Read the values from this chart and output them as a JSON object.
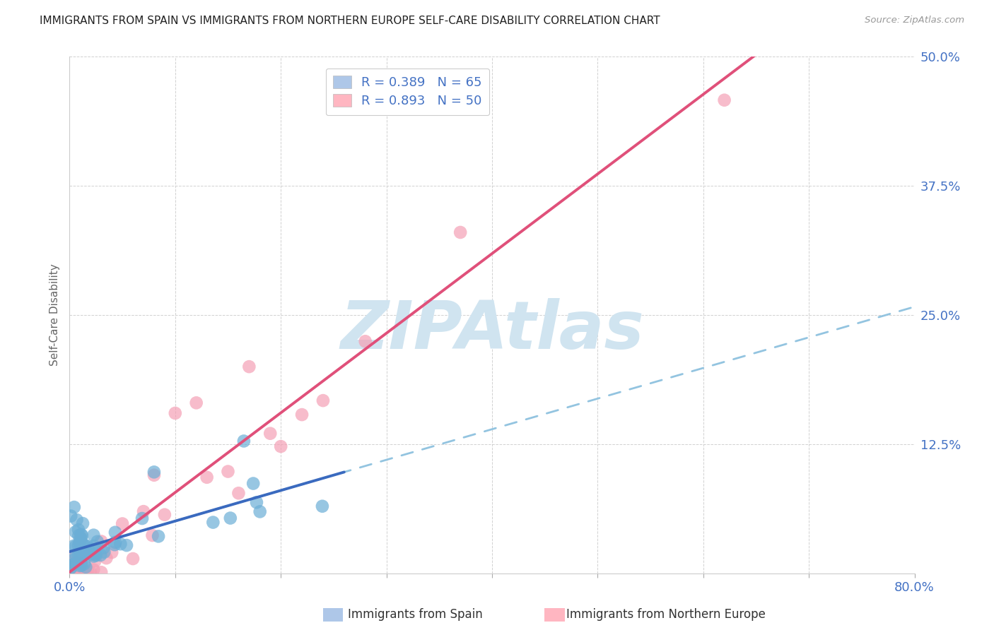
{
  "title": "IMMIGRANTS FROM SPAIN VS IMMIGRANTS FROM NORTHERN EUROPE SELF-CARE DISABILITY CORRELATION CHART",
  "source": "Source: ZipAtlas.com",
  "ylabel": "Self-Care Disability",
  "xlim": [
    0.0,
    0.8
  ],
  "ylim": [
    0.0,
    0.5
  ],
  "yticks": [
    0.0,
    0.125,
    0.25,
    0.375,
    0.5
  ],
  "yticklabels_right": [
    "",
    "12.5%",
    "25.0%",
    "37.5%",
    "50.0%"
  ],
  "xtick_left_label": "0.0%",
  "xtick_right_label": "80.0%",
  "series1_label": "Immigrants from Spain",
  "series1_R": 0.389,
  "series1_N": 65,
  "series1_color": "#6baed6",
  "series1_trend_color": "#3a6abf",
  "series1_dash_color": "#93c4e0",
  "series2_label": "Immigrants from Northern Europe",
  "series2_R": 0.893,
  "series2_N": 50,
  "series2_color": "#f4a0b5",
  "series2_trend_color": "#e0507a",
  "watermark": "ZIPAtlas",
  "watermark_color": "#d0e4f0",
  "background_color": "#ffffff",
  "title_fontsize": 11,
  "tick_label_color": "#4472c4",
  "ylabel_color": "#666666",
  "legend_patch1_color": "#aec7e8",
  "legend_patch2_color": "#ffb6c1",
  "legend_text_color": "#4472c4",
  "bottom_legend_text_color": "#333333",
  "source_color": "#999999"
}
